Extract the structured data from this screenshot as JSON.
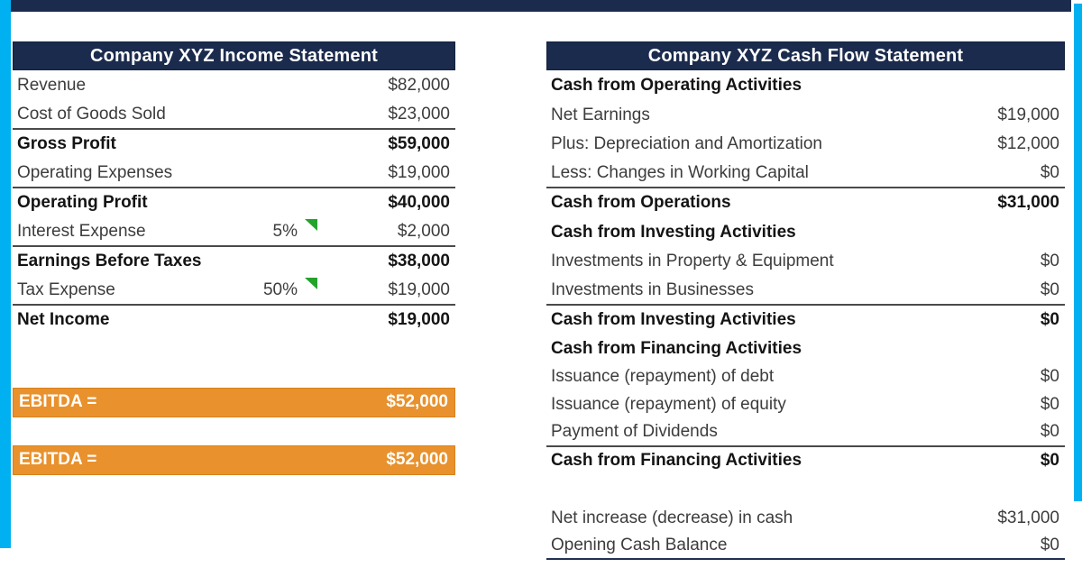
{
  "colors": {
    "navy": "#1b2b4d",
    "cyan_accent": "#00b0f0",
    "orange": "#e8912d",
    "green_flag": "#23a32b",
    "rule_line": "#4a4a4a"
  },
  "income_statement": {
    "title": "Company XYZ Income Statement",
    "rows": [
      {
        "label": "Revenue",
        "value": "$82,000"
      },
      {
        "label": "Cost of Goods Sold",
        "value": "$23,000"
      },
      {
        "label": "Gross Profit",
        "value": "$59,000"
      },
      {
        "label": "Operating Expenses",
        "value": "$19,000"
      },
      {
        "label": "Operating Profit",
        "value": "$40,000"
      },
      {
        "label": "Interest Expense",
        "percent": "5%",
        "value": "$2,000"
      },
      {
        "label": "Earnings Before Taxes",
        "value": "$38,000"
      },
      {
        "label": "Tax Expense",
        "percent": "50%",
        "value": "$19,000"
      },
      {
        "label": "Net Income",
        "value": "$19,000"
      }
    ],
    "ebitda_bars": [
      {
        "label": "EBITDA =",
        "value": "$52,000"
      },
      {
        "label": "EBITDA =",
        "value": "$52,000"
      }
    ]
  },
  "cash_flow_statement": {
    "title": "Company XYZ Cash Flow Statement",
    "rows": [
      {
        "label": "Cash from Operating Activities",
        "value": ""
      },
      {
        "label": "Net Earnings",
        "value": "$19,000"
      },
      {
        "label": "Plus: Depreciation and Amortization",
        "value": "$12,000"
      },
      {
        "label": "Less: Changes in Working Capital",
        "value": "$0"
      },
      {
        "label": "Cash from Operations",
        "value": "$31,000"
      },
      {
        "label": "Cash from Investing Activities",
        "value": ""
      },
      {
        "label": "Investments in Property & Equipment",
        "value": "$0"
      },
      {
        "label": "Investments in Businesses",
        "value": "$0"
      },
      {
        "label": "Cash from Investing Activities",
        "value": "$0"
      },
      {
        "label": "Cash from Financing Activities",
        "value": ""
      },
      {
        "label": "Issuance (repayment) of debt",
        "value": "$0"
      },
      {
        "label": "Issuance (repayment) of equity",
        "value": "$0"
      },
      {
        "label": "Payment of Dividends",
        "value": "$0"
      },
      {
        "label": "Cash from Financing Activities",
        "value": "$0"
      }
    ],
    "footer_rows": [
      {
        "label": "Net increase (decrease) in cash",
        "value": "$31,000"
      },
      {
        "label": "Opening Cash Balance",
        "value": "$0"
      }
    ]
  }
}
